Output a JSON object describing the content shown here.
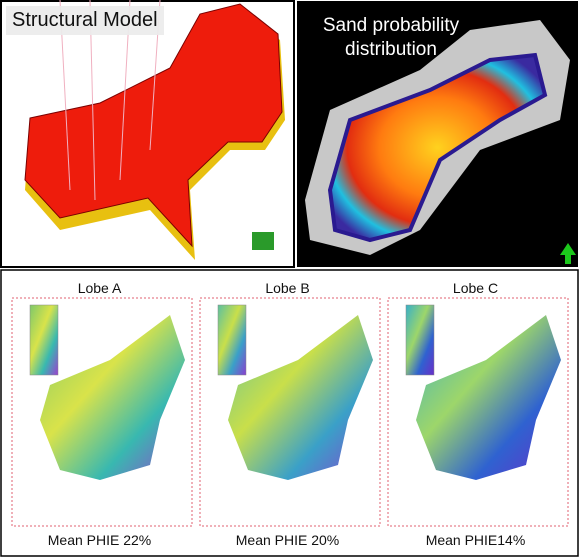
{
  "panels": {
    "structural_model": {
      "title": "Structural Model"
    },
    "sand_probability": {
      "title": "Sand probability distribution"
    }
  },
  "lobes": [
    {
      "title": "Lobe A",
      "caption": "Mean PHIE 22%"
    },
    {
      "title": "Lobe B",
      "caption": "Mean PHIE 20%"
    },
    {
      "title": "Lobe C",
      "caption": "Mean PHIE14%"
    }
  ]
}
